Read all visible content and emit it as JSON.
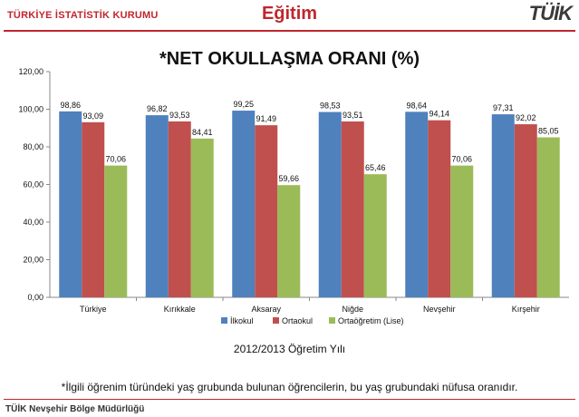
{
  "header": {
    "organization": "TÜRKİYE İSTATİSTİK KURUMU",
    "section": "Eğitim",
    "logo_text": "TÜİK"
  },
  "chart_data": {
    "type": "bar",
    "title": "*NET OKULLAŞMA ORANI (%)",
    "categories": [
      "Türkiye",
      "Kırıkkale",
      "Aksaray",
      "Niğde",
      "Nevşehir",
      "Kırşehir"
    ],
    "series": [
      {
        "name": "İlkokul",
        "color": "#4f81bd",
        "values": [
          98.86,
          96.82,
          99.25,
          98.53,
          98.64,
          97.31
        ],
        "labels": [
          "98,86",
          "96,82",
          "99,25",
          "98,53",
          "98,64",
          "97,31"
        ]
      },
      {
        "name": "Ortaokul",
        "color": "#c0504d",
        "values": [
          93.09,
          93.53,
          91.49,
          93.51,
          94.14,
          92.02
        ],
        "labels": [
          "93,09",
          "93,53",
          "91,49",
          "93,51",
          "94,14",
          "92,02"
        ]
      },
      {
        "name": "Ortaöğretim (Lise)",
        "color": "#9bbb59",
        "values": [
          70.06,
          84.41,
          59.66,
          65.46,
          70.06,
          85.05
        ],
        "labels": [
          "70,06",
          "84,41",
          "59,66",
          "65,46",
          "70,06",
          "85,05"
        ]
      }
    ],
    "yticks": [
      "0,00",
      "20,00",
      "40,00",
      "60,00",
      "80,00",
      "100,00",
      "120,00"
    ],
    "ylim": [
      0,
      120
    ],
    "legend_position": "bottom",
    "xlabel": "2012/2013 Öğretim Yılı"
  },
  "footnote": "*İlgili öğrenim türündeki yaş grubunda bulunan öğrencilerin, bu yaş grubundaki nüfusa oranıdır.",
  "footer": "TÜİK Nevşehir Bölge Müdürlüğü"
}
